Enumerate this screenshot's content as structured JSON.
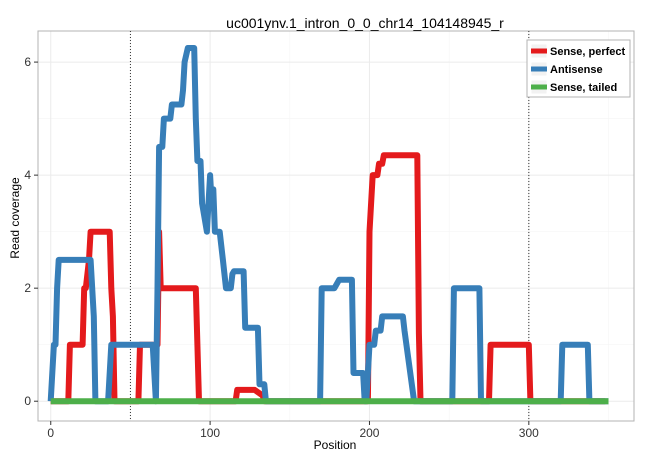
{
  "chart_data": {
    "type": "line",
    "title": "uc001ynv.1_intron_0_0_chr14_104148945_r",
    "xlabel": "Position",
    "ylabel": "Read coverage",
    "xlim": [
      -8,
      366
    ],
    "ylim": [
      -0.35,
      6.55
    ],
    "x_ticks": [
      0,
      100,
      200,
      300
    ],
    "x_tick_labels": [
      "0",
      "100",
      "200",
      "300"
    ],
    "y_ticks": [
      0,
      2,
      4,
      6
    ],
    "y_tick_labels": [
      "0",
      "2",
      "4",
      "6"
    ],
    "grid": true,
    "legend_position": "top-right",
    "vlines": [
      50,
      300
    ],
    "series": [
      {
        "name": "Sense, perfect",
        "color": "#E41A1C",
        "x": [
          0,
          11,
          12,
          20,
          21,
          22,
          24,
          25,
          37,
          38,
          39,
          40,
          41,
          55,
          56,
          67,
          68,
          69,
          91,
          92,
          93,
          116,
          117,
          127,
          128,
          133,
          134,
          160,
          199,
          200,
          202,
          203,
          205,
          206,
          208,
          209,
          230,
          231,
          232,
          275,
          276,
          300,
          301,
          348
        ],
        "y": [
          0,
          0,
          1,
          1,
          2,
          2,
          2.5,
          3,
          3,
          2,
          1.5,
          0,
          0,
          0,
          1,
          1,
          3,
          2,
          2,
          1,
          0,
          0,
          0.2,
          0.2,
          0.2,
          0.1,
          0,
          0,
          0,
          3,
          4,
          4,
          4,
          4.2,
          4.2,
          4.35,
          4.35,
          1.2,
          0,
          0,
          1,
          1,
          0,
          0
        ]
      },
      {
        "name": "Antisense",
        "color": "#377EB8",
        "x": [
          0,
          2,
          3,
          4,
          5,
          6,
          25,
          26,
          27,
          28,
          36,
          37,
          38,
          39,
          55,
          64,
          65,
          66,
          67,
          68,
          70,
          71,
          72,
          73,
          75,
          76,
          77,
          82,
          83,
          84,
          86,
          87,
          90,
          91,
          92,
          94,
          95,
          98,
          99,
          100,
          101,
          102,
          103,
          104,
          106,
          107,
          108,
          110,
          113,
          114,
          115,
          121,
          122,
          130,
          131,
          134,
          135,
          148,
          169,
          170,
          177,
          178,
          181,
          182,
          189,
          190,
          196,
          197,
          198,
          199,
          200,
          201,
          203,
          204,
          207,
          208,
          221,
          222,
          228,
          229,
          252,
          253,
          269,
          270,
          320,
          321,
          337,
          338,
          350
        ],
        "y": [
          0,
          1,
          1,
          2,
          2.5,
          2.5,
          2.5,
          2,
          1.5,
          0,
          0,
          0.5,
          1,
          1,
          1,
          1,
          0.5,
          0,
          2,
          4.5,
          4.5,
          5,
          5,
          5,
          5,
          5.25,
          5.25,
          5.25,
          5.5,
          6,
          6.25,
          6.25,
          6.25,
          5,
          4.25,
          4.25,
          3.5,
          3,
          3.5,
          4,
          3.5,
          3.75,
          3,
          3,
          3,
          2.75,
          2.5,
          2,
          2,
          2.25,
          2.3,
          2.3,
          1.3,
          1.3,
          0.3,
          0.3,
          0,
          0,
          0,
          2,
          2,
          2,
          2.15,
          2.15,
          2.15,
          0.5,
          0.5,
          0,
          0,
          0.5,
          1,
          1,
          1,
          1.25,
          1.25,
          1.5,
          1.5,
          1.25,
          0,
          0,
          0,
          2,
          2,
          0,
          0,
          1,
          1,
          0,
          0
        ]
      },
      {
        "name": "Sense, tailed",
        "color": "#4DAF4A",
        "x": [
          0,
          350
        ],
        "y": [
          0,
          0
        ]
      }
    ]
  }
}
